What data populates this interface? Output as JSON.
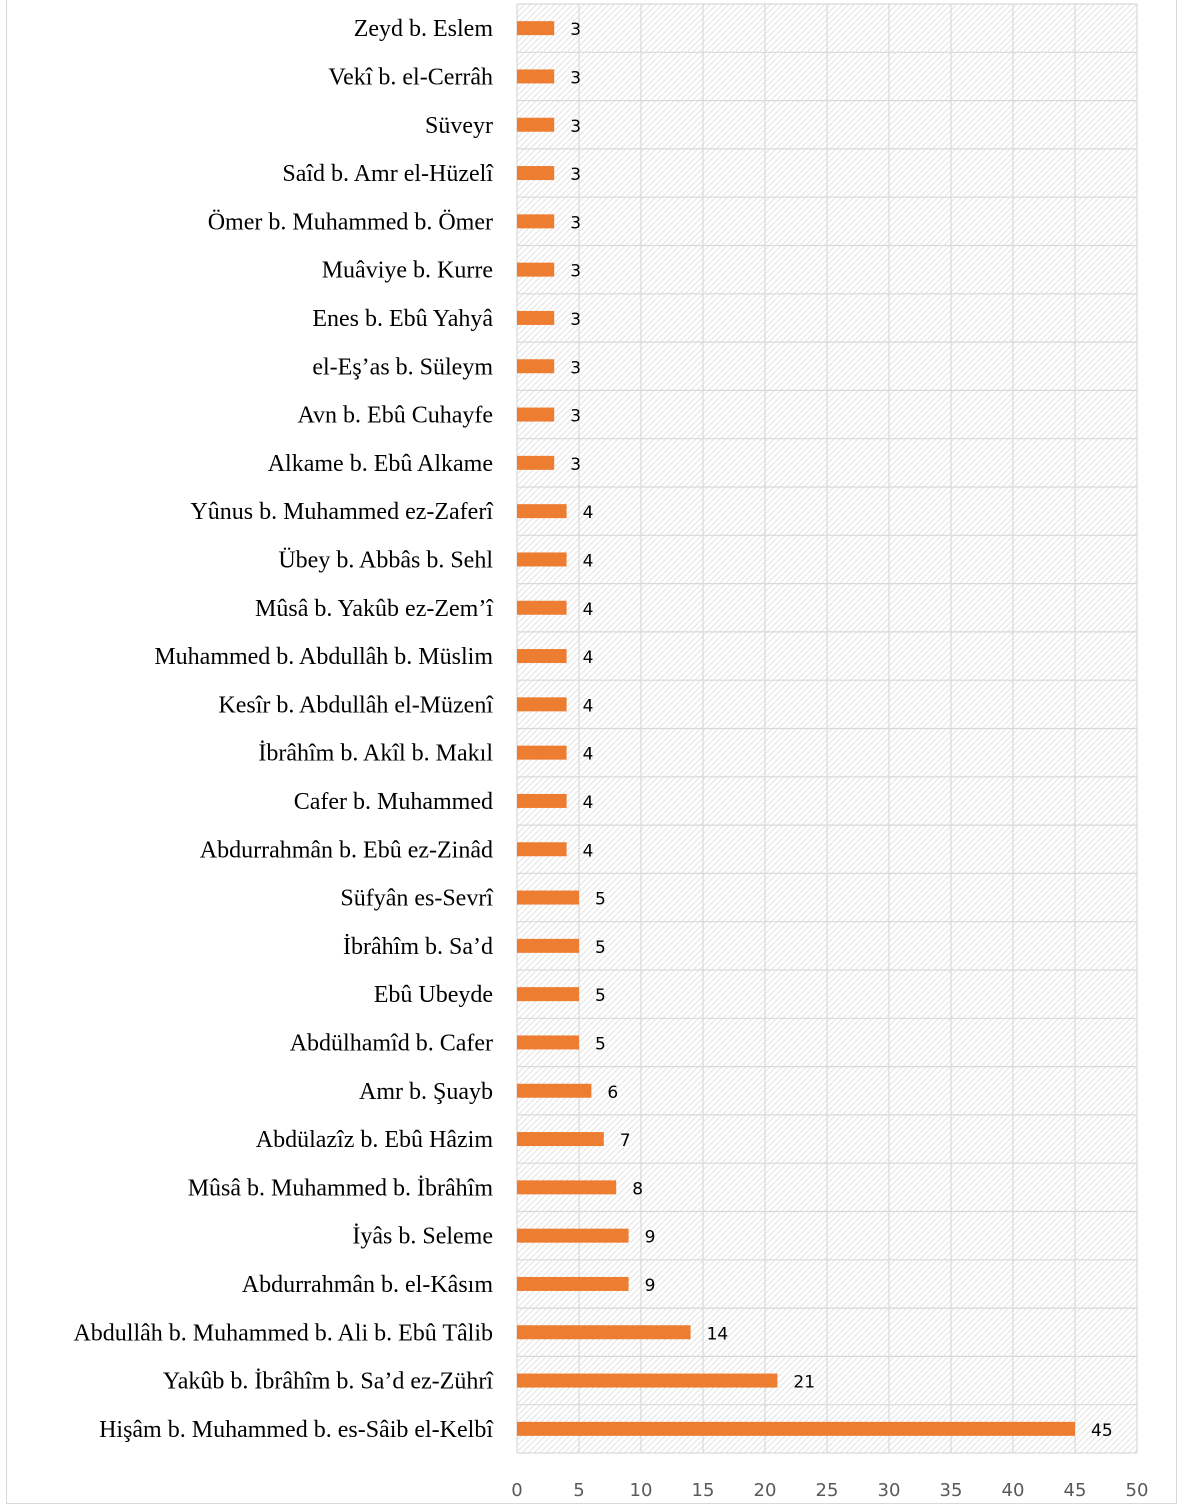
{
  "chart_data": {
    "type": "bar",
    "orientation": "horizontal",
    "categories": [
      "Zeyd b. Eslem",
      "Vekî b. el-Cerrâh",
      "Süveyr",
      "Saîd b. Amr el-Hüzelî",
      "Ömer b. Muhammed b. Ömer",
      "Muâviye b. Kurre",
      "Enes b. Ebû Yahyâ",
      "el-Eş’as b. Süleym",
      "Avn b. Ebû Cuhayfe",
      "Alkame b. Ebû Alkame",
      "Yûnus b. Muhammed ez-Zaferî",
      "Übey b. Abbâs b. Sehl",
      "Mûsâ b. Yakûb ez-Zem’î",
      "Muhammed b. Abdullâh b. Müslim",
      "Kesîr b. Abdullâh el-Müzenî",
      "İbrâhîm b. Akîl b. Makıl",
      "Cafer b. Muhammed",
      "Abdurrahmân b. Ebû ez-Zinâd",
      "Süfyân es-Sevrî",
      "İbrâhîm b. Sa’d",
      "Ebû Ubeyde",
      "Abdülhamîd b. Cafer",
      "Amr b. Şuayb",
      "Abdülazîz b. Ebû Hâzim",
      "Mûsâ b. Muhammed b. İbrâhîm",
      "İyâs b. Seleme",
      "Abdurrahmân b. el-Kâsım",
      "Abdullâh b. Muhammed b. Ali b. Ebû Tâlib",
      "Yakûb b. İbrâhîm b. Sa’d ez-Zührî",
      "Hişâm b. Muhammed b. es-Sâib el-Kelbî"
    ],
    "values": [
      3,
      3,
      3,
      3,
      3,
      3,
      3,
      3,
      3,
      3,
      4,
      4,
      4,
      4,
      4,
      4,
      4,
      4,
      5,
      5,
      5,
      5,
      6,
      7,
      8,
      9,
      9,
      14,
      21,
      45
    ],
    "value_labels": [
      "3",
      "3",
      "3",
      "3",
      "3",
      "3",
      "3",
      "3",
      "3",
      "3",
      "4",
      "4",
      "4",
      "4",
      "4",
      "4",
      "4",
      "4",
      "5",
      "5",
      "5",
      "5",
      "6",
      "7",
      "8",
      "9",
      "9",
      "14",
      "21",
      "45"
    ],
    "xlim": [
      0,
      50
    ],
    "xticks": [
      0,
      5,
      10,
      15,
      20,
      25,
      30,
      35,
      40,
      45,
      50
    ],
    "xtick_labels": [
      "0",
      "5",
      "10",
      "15",
      "20",
      "25",
      "30",
      "35",
      "40",
      "45",
      "50"
    ],
    "bar_color": "#ed7d31",
    "grid": true,
    "gridline_color": "#d9d9d9",
    "plot_background": "diagonal-hatch",
    "legend": "none"
  }
}
